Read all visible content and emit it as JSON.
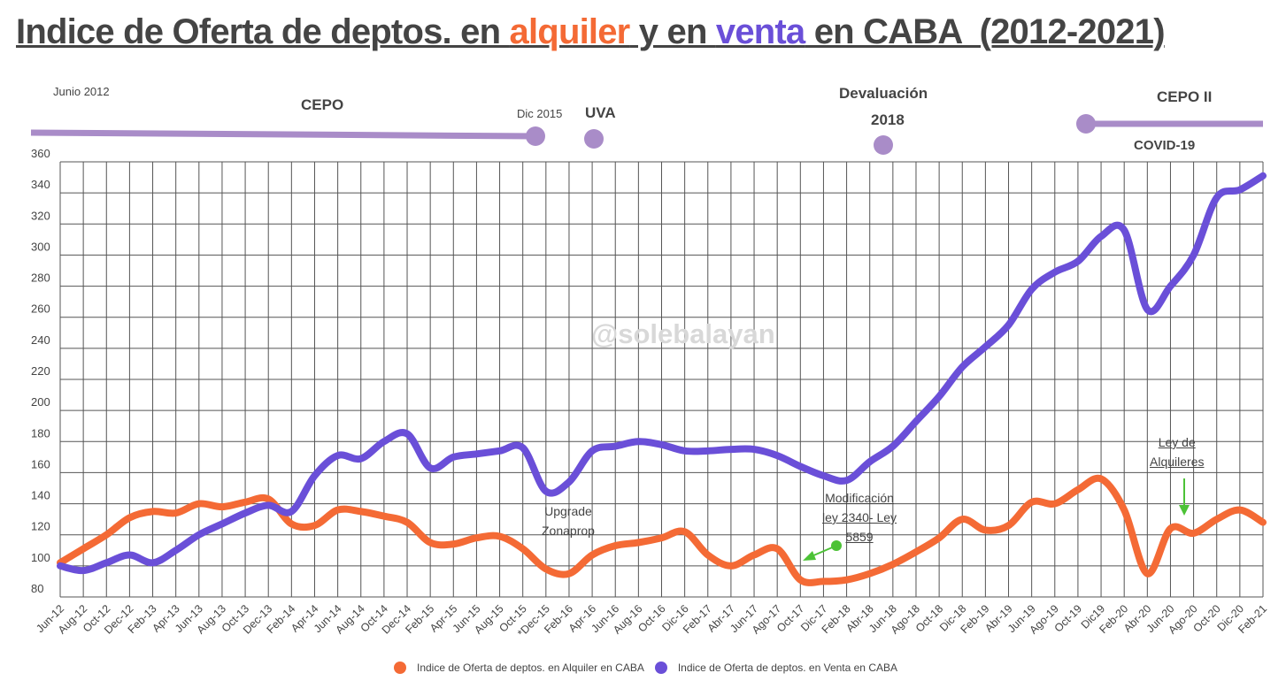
{
  "title": {
    "part1": "Indice de Oferta de deptos. en ",
    "alquiler": "alquiler",
    "part2": " y en ",
    "venta": "venta",
    "part3": " en CABA  (2012-2021)"
  },
  "timeline": {
    "junio_2012": "Junio 2012",
    "cepo": "CEPO",
    "dic_2015": "Dic 2015",
    "uva": "UVA",
    "devaluacion": "Devaluación",
    "y2018": "2018",
    "cepo_ii": "CEPO II",
    "covid": "COVID-19",
    "color": "#a98cc8"
  },
  "annotations": {
    "upgrade_1": "Upgrade",
    "upgrade_2": "Zonaprop",
    "modif_1": "Modificación",
    "modif_2": "ley 2340- Ley",
    "modif_3": "5859",
    "ley_1": "Ley de",
    "ley_2": "Alquileres",
    "arrow_color": "#4cc236"
  },
  "watermark": "@solebalayan",
  "chart_data": {
    "type": "line",
    "categories": [
      "Jun-12",
      "Aug-12",
      "Oct-12",
      "Dec-12",
      "Feb-13",
      "Apr-13",
      "Jun-13",
      "Aug-13",
      "Oct-13",
      "Dec-13",
      "Feb-14",
      "Apr-14",
      "Jun-14",
      "Aug-14",
      "Oct-14",
      "Dec-14",
      "Feb-15",
      "Apr-15",
      "Jun-15",
      "Aug-15",
      "Oct-15",
      "*Dec-15",
      "Feb-16",
      "Apr-16",
      "Jun-16",
      "Aug-16",
      "Oct-16",
      "Dic-16",
      "Feb-17",
      "Abr-17",
      "Jun-17",
      "Ago-17",
      "Oct-17",
      "Dic-17",
      "Feb-18",
      "Abr-18",
      "Jun-18",
      "Ago-18",
      "Oct-18",
      "Dic-18",
      "Feb-19",
      "Abr-19",
      "Jun-19",
      "Ago-19",
      "Oct-19",
      "Dic19",
      "Feb-20",
      "Abr-20",
      "Jun-20",
      "Ago-20",
      "Oct-20",
      "Dic-20",
      "Feb-21"
    ],
    "series": [
      {
        "name": "Indice de Oferta de deptos. en Alquiler en CABA",
        "color": "#f46a35",
        "values": [
          102,
          111,
          120,
          131,
          135,
          134,
          140,
          138,
          141,
          143,
          127,
          126,
          136,
          135,
          132,
          128,
          115,
          114,
          118,
          119,
          111,
          98,
          95,
          107,
          113,
          115,
          118,
          122,
          107,
          100,
          107,
          111,
          91,
          90,
          91,
          95,
          101,
          109,
          118,
          130,
          123,
          126,
          141,
          140,
          149,
          156,
          136,
          95,
          124,
          121,
          130,
          136,
          128
        ]
      },
      {
        "name": "Indice de Oferta de deptos. en Venta en CABA",
        "color": "#6a4fd8",
        "values": [
          100,
          97,
          102,
          107,
          102,
          110,
          120,
          127,
          134,
          139,
          135,
          158,
          171,
          169,
          180,
          185,
          163,
          170,
          172,
          174,
          176,
          148,
          154,
          174,
          177,
          180,
          178,
          174,
          174,
          175,
          175,
          171,
          164,
          158,
          155,
          167,
          177,
          193,
          209,
          228,
          241,
          255,
          278,
          289,
          296,
          312,
          316,
          265,
          280,
          300,
          337,
          342,
          351
        ]
      }
    ],
    "xlabel": "",
    "ylabel": "",
    "ylim": [
      80,
      360
    ],
    "yticks": [
      80,
      100,
      120,
      140,
      160,
      180,
      200,
      220,
      240,
      260,
      280,
      300,
      320,
      340,
      360
    ],
    "grid": true,
    "legend": "bottom"
  }
}
